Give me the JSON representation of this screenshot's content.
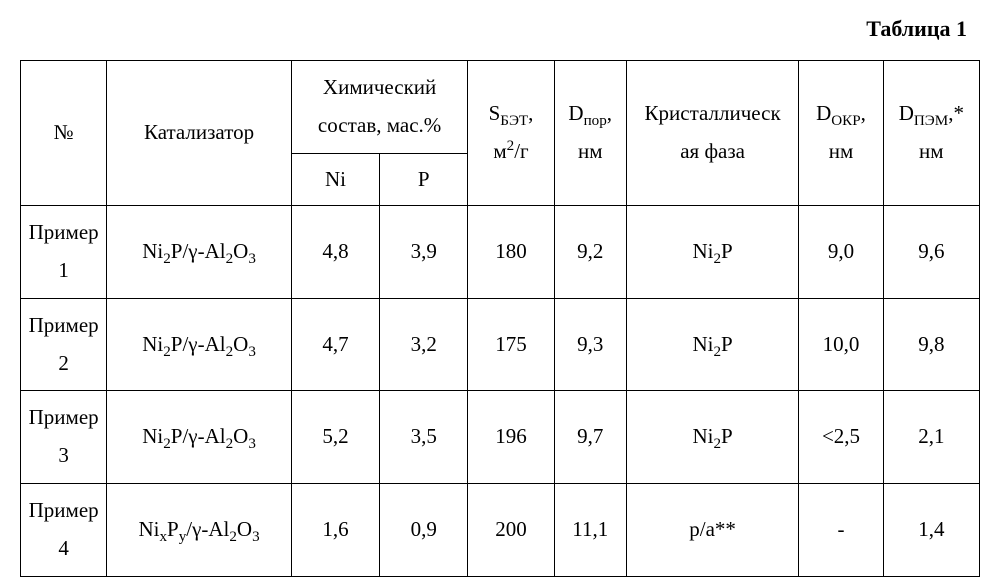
{
  "caption": "Таблица 1",
  "headers": {
    "num": {
      "label": "№"
    },
    "cat": {
      "label": "Катализатор"
    },
    "chem": {
      "label_line1": "Химический",
      "label_line2": "состав, мас.%"
    },
    "ni": {
      "label": "Ni"
    },
    "p": {
      "label": "P"
    },
    "sbet": {
      "base1": "S",
      "sub1": "БЭТ",
      "comma": ",",
      "base2": "м",
      "sup2": "2",
      "tail2": "/г"
    },
    "dpor": {
      "base1": "D",
      "sub1": "пор",
      "comma": ",",
      "line2": "нм"
    },
    "phase": {
      "label_line1": "Кристаллическ",
      "label_line2": "ая фаза"
    },
    "dokr": {
      "base1": "D",
      "sub1": "ОКР",
      "comma": ",",
      "line2": "нм"
    },
    "dpem": {
      "base1": "D",
      "sub1": "ПЭМ",
      "comma": ",*",
      "line2": "нм"
    }
  },
  "formulas": {
    "ni2p_gal2o3": [
      {
        "t": "Ni"
      },
      {
        "sub": "2"
      },
      {
        "t": "P/γ-Al"
      },
      {
        "sub": "2"
      },
      {
        "t": "O"
      },
      {
        "sub": "3"
      }
    ],
    "nixpy_gal2o3": [
      {
        "t": "Ni"
      },
      {
        "sub": "x"
      },
      {
        "t": "P"
      },
      {
        "sub": "y"
      },
      {
        "t": "/γ-Al"
      },
      {
        "sub": "2"
      },
      {
        "t": "O"
      },
      {
        "sub": "3"
      }
    ],
    "ni2p": [
      {
        "t": "Ni"
      },
      {
        "sub": "2"
      },
      {
        "t": "P"
      }
    ]
  },
  "rows": [
    {
      "num_line1": "Пример",
      "num_line2": "1",
      "cat": "ni2p_gal2o3",
      "ni": "4,8",
      "p": "3,9",
      "sbet": "180",
      "dpor": "9,2",
      "phase": "ni2p",
      "dokr": "9,0",
      "dpem": "9,6"
    },
    {
      "num_line1": "Пример",
      "num_line2": "2",
      "cat": "ni2p_gal2o3",
      "ni": "4,7",
      "p": "3,2",
      "sbet": "175",
      "dpor": "9,3",
      "phase": "ni2p",
      "dokr": "10,0",
      "dpem": "9,8"
    },
    {
      "num_line1": "Пример",
      "num_line2": "3",
      "cat": "ni2p_gal2o3",
      "ni": "5,2",
      "p": "3,5",
      "sbet": "196",
      "dpor": "9,7",
      "phase": "ni2p",
      "dokr": "<2,5",
      "dpem": "2,1"
    },
    {
      "num_line1": "Пример",
      "num_line2": "4",
      "cat": "nixpy_gal2o3",
      "ni": "1,6",
      "p": "0,9",
      "sbet": "200",
      "dpor": "11,1",
      "phase_text": "р/а**",
      "dokr": "-",
      "dpem": "1,4"
    }
  ],
  "style": {
    "background": "#ffffff",
    "text_color": "#000000",
    "border_color": "#000000",
    "font_family": "Times New Roman",
    "base_font_size_pt": 16,
    "caption_font_size_pt": 17
  }
}
